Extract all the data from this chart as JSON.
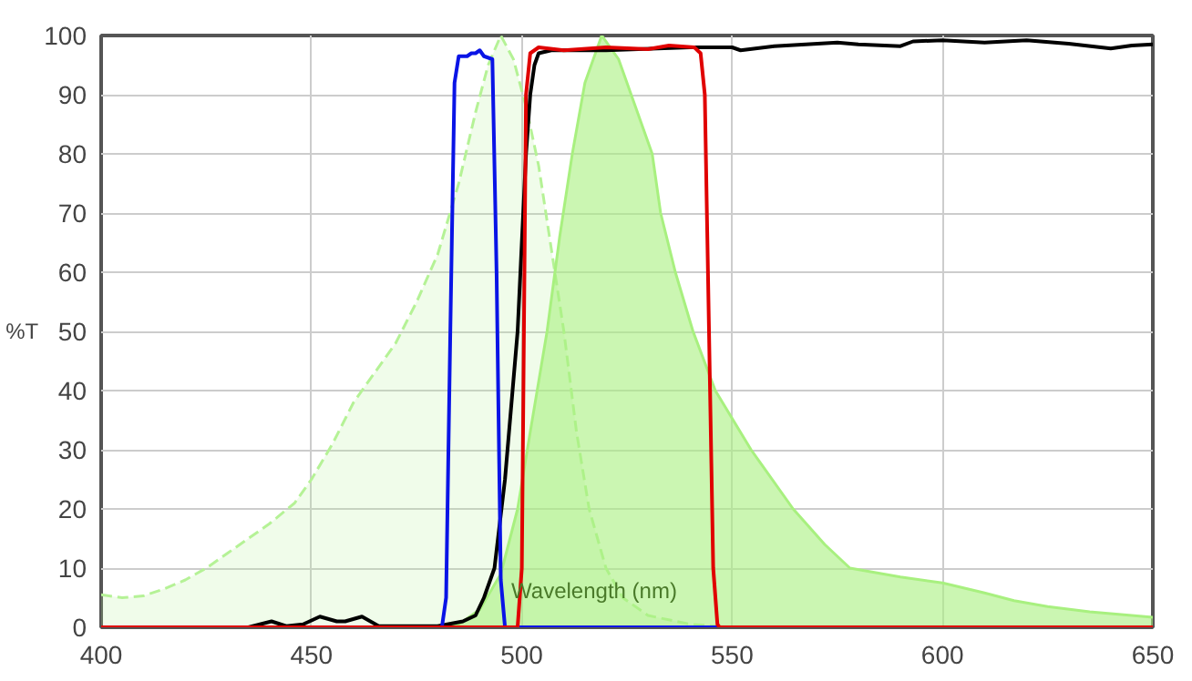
{
  "chart_data": {
    "type": "line",
    "xlabel": "Wavelength (nm)",
    "ylabel": "%T",
    "xlim": [
      400,
      650
    ],
    "ylim": [
      0,
      100
    ],
    "xticks": [
      400,
      450,
      500,
      550,
      600,
      650
    ],
    "yticks": [
      0,
      10,
      20,
      30,
      40,
      50,
      60,
      70,
      80,
      90,
      100
    ],
    "grid": true,
    "marker": "none",
    "series": [
      {
        "type": "area",
        "color": "#b5f296",
        "line_style": "dashed",
        "x": [
          400,
          405,
          410,
          415,
          420,
          425,
          430,
          435,
          440,
          446,
          450,
          455,
          460,
          465,
          470,
          475,
          480,
          485,
          489,
          492,
          495,
          498,
          501,
          504,
          507,
          510,
          513,
          516,
          520,
          524,
          530,
          540,
          550
        ],
        "values": [
          5.5,
          5,
          5.3,
          6.5,
          8,
          10,
          12.5,
          15,
          17.5,
          21,
          25,
          31,
          38,
          43,
          48,
          55,
          63,
          75,
          87,
          95,
          100,
          96,
          88,
          78,
          64,
          50,
          33,
          20,
          10,
          5,
          2,
          0.5,
          0
        ]
      },
      {
        "type": "area",
        "color": "#a8f07f",
        "line_style": "solid",
        "x": [
          480,
          485,
          490,
          495,
          499,
          502,
          506,
          509,
          512,
          515,
          519,
          523,
          527,
          531,
          533,
          536.5,
          540.7,
          546,
          554.5,
          564.5,
          572,
          578,
          590,
          600,
          610,
          617,
          625,
          635,
          650
        ],
        "values": [
          0,
          0.5,
          3,
          9,
          20,
          33,
          50,
          66,
          80,
          92,
          100,
          96,
          88,
          80,
          70,
          60,
          50,
          40,
          30,
          20,
          14,
          10,
          8.5,
          7.5,
          5.8,
          4.5,
          3.5,
          2.6,
          1.7
        ]
      },
      {
        "color": "#000000",
        "x": [
          400,
          435,
          440.5,
          444,
          448,
          452,
          456,
          458,
          462,
          466,
          480,
          486,
          489,
          491,
          493.5,
          496,
          499,
          501,
          502,
          503,
          504,
          507,
          520,
          540,
          550,
          552,
          560,
          575,
          580,
          590,
          593,
          600,
          610,
          620,
          630,
          640,
          645,
          650
        ],
        "values": [
          0,
          0,
          1,
          0.2,
          0.5,
          1.8,
          1,
          1,
          1.8,
          0.2,
          0.2,
          1,
          2,
          5,
          10,
          25,
          50,
          80,
          90,
          95,
          97,
          97.5,
          97.5,
          98,
          98,
          97.5,
          98.2,
          98.8,
          98.5,
          98.2,
          99,
          99.2,
          98.8,
          99.2,
          98.6,
          97.8,
          98.3,
          98.5
        ]
      },
      {
        "color": "#0a14e6",
        "x": [
          400,
          481,
          482,
          483,
          484,
          485,
          487,
          488,
          489,
          490,
          491,
          493,
          494,
          495,
          496,
          650
        ],
        "values": [
          0,
          0,
          5,
          50,
          92,
          96.5,
          96.5,
          97,
          97,
          97.5,
          96.5,
          96,
          60,
          8,
          0,
          0
        ]
      },
      {
        "color": "#e00000",
        "x": [
          400,
          499,
          500,
          500.5,
          501,
          502,
          504,
          510,
          520,
          530,
          535,
          541,
          542.5,
          543.5,
          544.5,
          545.5,
          546.5,
          547,
          650
        ],
        "values": [
          0,
          0,
          10,
          50,
          90,
          97,
          98,
          97.5,
          98,
          97.7,
          98.3,
          98,
          97,
          90,
          50,
          10,
          0.5,
          0,
          0
        ]
      }
    ]
  }
}
